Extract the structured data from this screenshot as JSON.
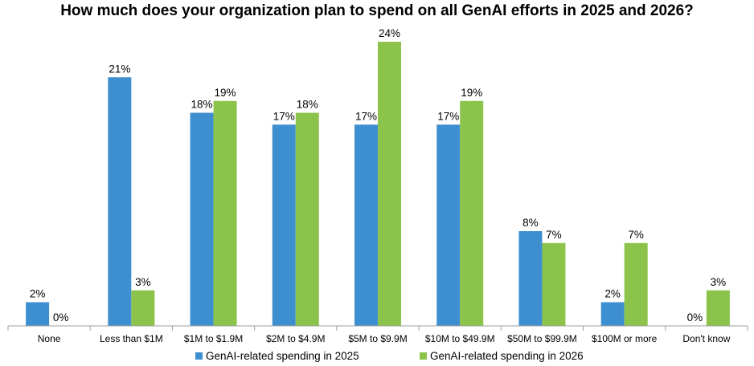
{
  "chart_data": {
    "type": "bar",
    "title": "How much does your organization plan to spend on all GenAI efforts in 2025 and 2026?",
    "categories": [
      "None",
      "Less than $1M",
      "$1M to $1.9M",
      "$2M to $4.9M",
      "$5M to $9.9M",
      "$10M to $49.9M",
      "$50M to $99.9M",
      "$100M or more",
      "Don't know"
    ],
    "series": [
      {
        "name": "GenAI-related spending in 2025",
        "values": [
          2,
          21,
          18,
          17,
          17,
          17,
          8,
          2,
          0
        ],
        "color": "#3e8fd0"
      },
      {
        "name": "GenAI-related spending in 2026",
        "values": [
          0,
          3,
          19,
          18,
          24,
          19,
          7,
          7,
          3
        ],
        "color": "#8cc34a"
      }
    ],
    "value_suffix": "%",
    "ylim": [
      0,
      24
    ],
    "grid": false,
    "legend": "bottom"
  }
}
